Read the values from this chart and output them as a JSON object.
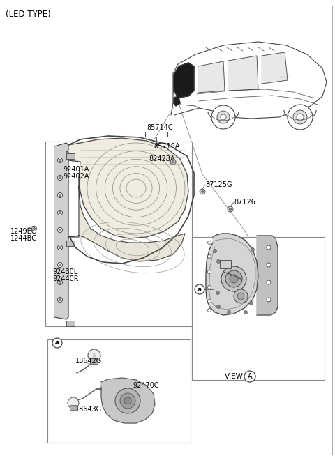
{
  "bg_color": "#ffffff",
  "line_color": "#444444",
  "text_color": "#000000",
  "gray_light": "#cccccc",
  "gray_mid": "#999999",
  "gray_dark": "#666666",
  "labels": {
    "led_type": "(LED TYPE)",
    "L85714C": "85714C",
    "L85719A": "85719A",
    "L82423A": "82423A",
    "L92401A": "92401A",
    "L92402A": "92402A",
    "L87125G": "87125G",
    "L87126": "87126",
    "L1249EC": "1249EC",
    "L1244BG": "1244BG",
    "L92430L": "92430L",
    "L92440R": "92440R",
    "L18642G": "18642G",
    "L18643G": "18643G",
    "L92470C": "92470C",
    "LVIEW_A": "VIEW",
    "La": "a",
    "LA": "A"
  },
  "font_size_main": 7.0,
  "font_size_title": 8.5,
  "font_size_small": 6.0
}
